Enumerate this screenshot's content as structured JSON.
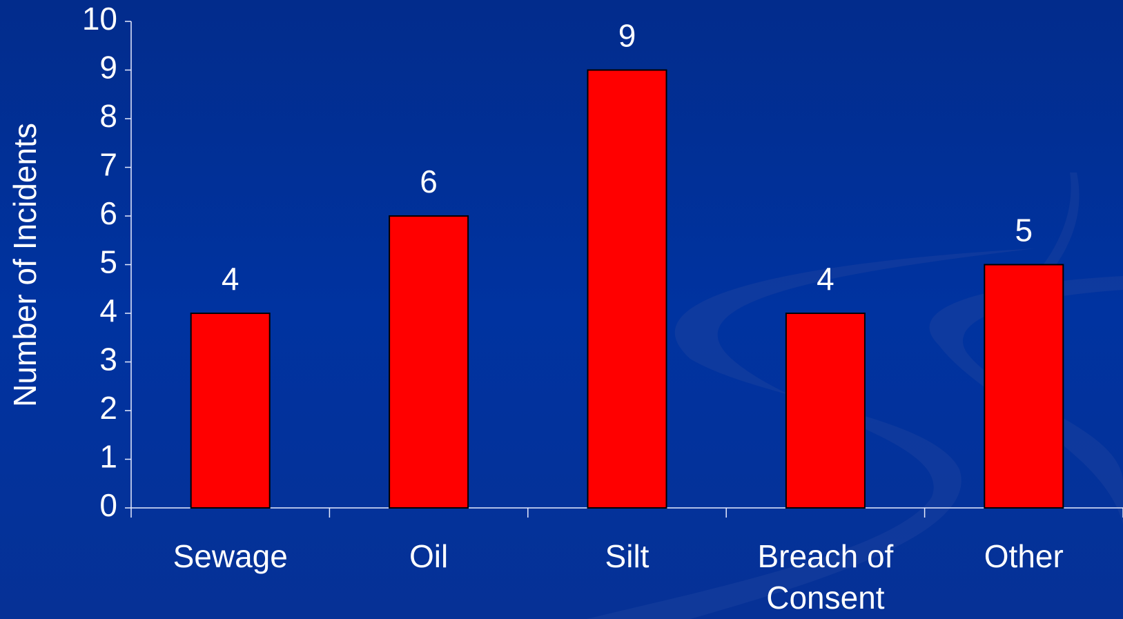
{
  "chart_data": {
    "type": "bar",
    "y_label": "Number of Incidents",
    "categories": [
      "Sewage",
      "Oil",
      "Silt",
      "Breach of Consent",
      "Other"
    ],
    "values": [
      4,
      6,
      9,
      4,
      5
    ],
    "color": "#ff0000",
    "ylim": [
      0,
      10
    ],
    "yticks": [
      0,
      1,
      2,
      3,
      4,
      5,
      6,
      7,
      8,
      9,
      10
    ],
    "grid": false
  }
}
